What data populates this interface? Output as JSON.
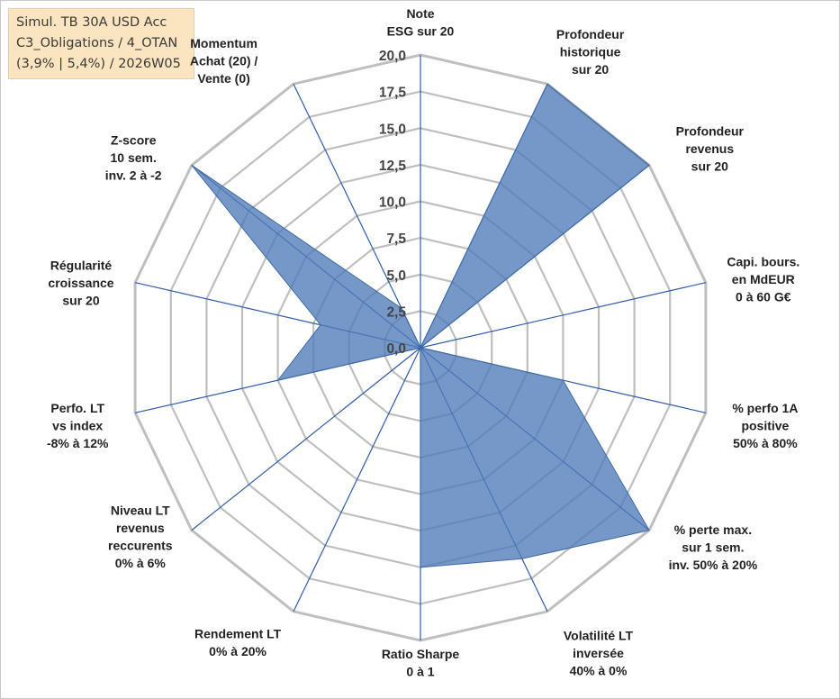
{
  "title_box": {
    "line1": "Simul. TB 30A USD Acc",
    "line2": "C3_Obligations / 4_OTAN",
    "line3": "(3,9% | 5,4%) / 2026W05"
  },
  "colors": {
    "series_fill": "#4f7bb8",
    "series_stroke": "#3f6aa6",
    "grid": "#bfbfbf",
    "spoke": "#2f5ca8",
    "title_bg": "#fbe5c0"
  },
  "chart_data": {
    "type": "radar",
    "rmax": 20,
    "ticks": [
      "0,0",
      "2,5",
      "5,0",
      "7,5",
      "10,0",
      "12,5",
      "15,0",
      "17,5",
      "20,0"
    ],
    "axes": [
      {
        "label": [
          "Note",
          "ESG sur 20"
        ]
      },
      {
        "label": [
          "Profondeur",
          "historique",
          "sur 20"
        ]
      },
      {
        "label": [
          "Profondeur",
          "revenus",
          "sur 20"
        ]
      },
      {
        "label": [
          "Capi. bours.",
          "en MdEUR",
          "0 à 60 G€"
        ]
      },
      {
        "label": [
          "% perfo 1A",
          "positive",
          "50% à 80%"
        ]
      },
      {
        "label": [
          "% perte max.",
          "sur 1 sem.",
          "inv. 50% à 20%"
        ]
      },
      {
        "label": [
          "Volatilité LT",
          "inversée",
          "40% à 0%"
        ]
      },
      {
        "label": [
          "Ratio Sharpe",
          "0 à 1"
        ]
      },
      {
        "label": [
          "Rendement LT",
          "0% à 20%"
        ]
      },
      {
        "label": [
          "Niveau LT",
          "revenus",
          "reccurents",
          "0% à 6%"
        ]
      },
      {
        "label": [
          "Perfo. LT",
          "vs index",
          "-8% à 12%"
        ]
      },
      {
        "label": [
          "Régularité",
          "croissance",
          "sur 20"
        ]
      },
      {
        "label": [
          "Z-score",
          "10 sem.",
          "inv. 2 à -2"
        ]
      },
      {
        "label": [
          "Momentum",
          "Achat (20) /",
          "Vente (0)"
        ]
      }
    ],
    "series": [
      {
        "values": [
          0,
          20,
          20,
          0,
          10,
          20,
          16,
          15,
          0,
          0,
          10,
          7,
          20,
          3
        ]
      }
    ]
  }
}
